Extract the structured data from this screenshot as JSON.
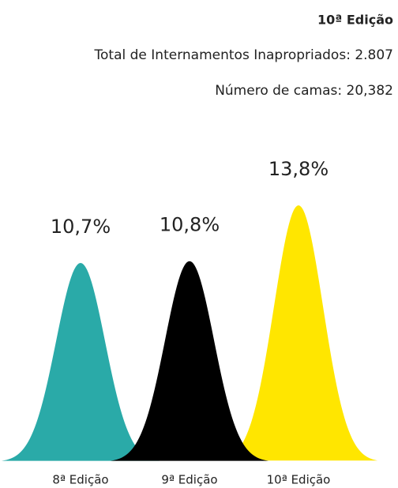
{
  "header": {
    "edition": "10ª Edição",
    "total": "Total de Internamentos Inapropriados: 2.807",
    "beds": "Número de camas: 20,382"
  },
  "chart_data": {
    "type": "bell",
    "categories": [
      "8ª Edição",
      "9ª Edição",
      "10ª Edição"
    ],
    "values": [
      10.7,
      10.8,
      13.8
    ],
    "value_labels": [
      "10,7%",
      "10,8%",
      "13,8%"
    ],
    "colors": [
      "#2aaaa8",
      "#000000",
      "#ffe600"
    ]
  }
}
